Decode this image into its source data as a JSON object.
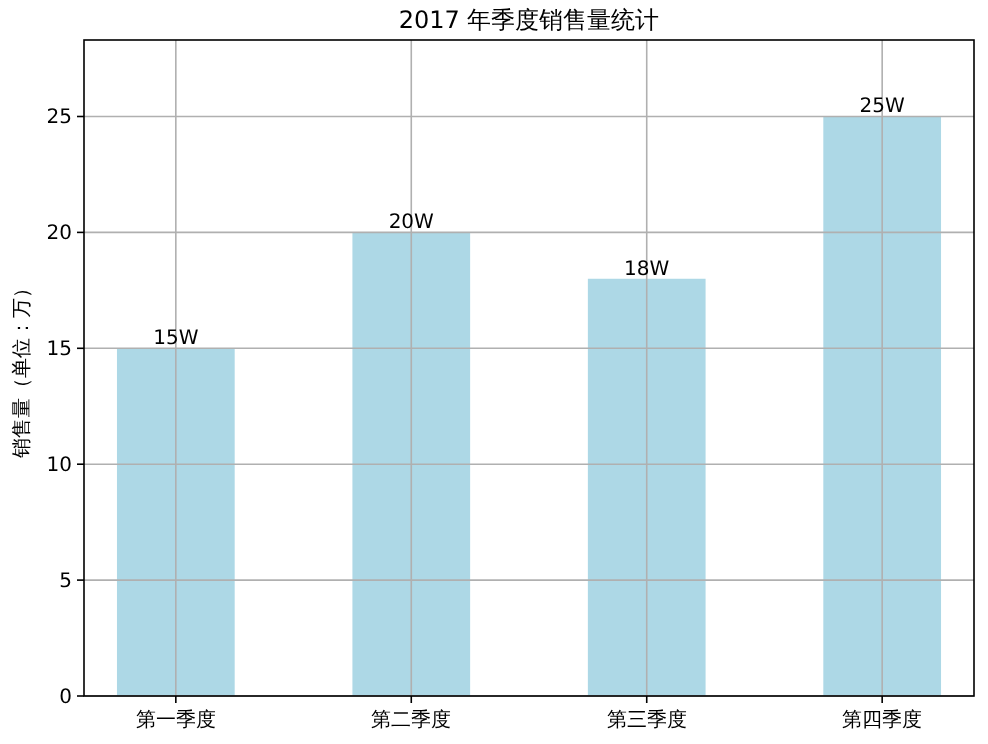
{
  "chart_data": {
    "type": "bar",
    "title": "2017 年季度销售量统计",
    "ylabel": "销售量（单位：万）",
    "categories": [
      "第一季度",
      "第二季度",
      "第三季度",
      "第四季度"
    ],
    "values": [
      15,
      20,
      18,
      25
    ],
    "value_labels": [
      "15W",
      "20W",
      "18W",
      "25W"
    ],
    "color": "#add8e6",
    "ylim": [
      0,
      28.3
    ],
    "yticks": [
      0,
      5,
      10,
      15,
      20,
      25
    ],
    "grid": true
  }
}
